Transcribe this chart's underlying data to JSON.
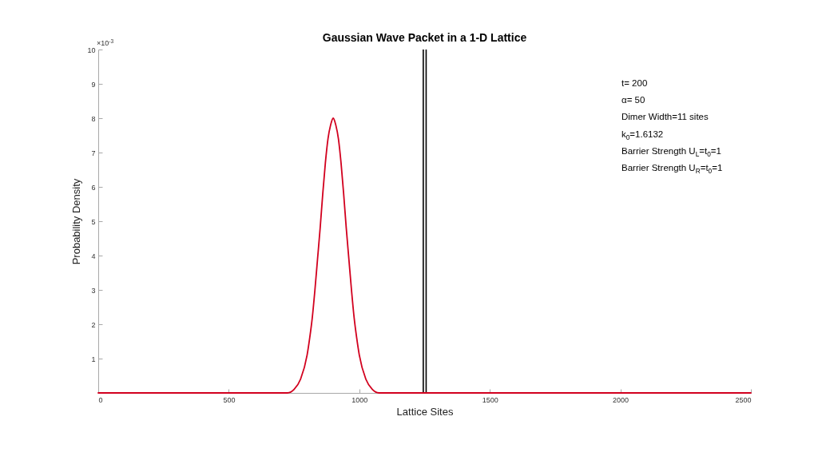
{
  "chart_data": {
    "type": "line",
    "title": "Gaussian Wave Packet in a 1-D Lattice",
    "xlabel": "Lattice Sites",
    "ylabel": "Probability Density",
    "annotations": [
      "×10$^{-3}$",
      "t= 200",
      "α= 50",
      "Dimer Width=11 sites",
      "k$_{0}$=1.6132",
      "Barrier Strength U$_{L}$=t$_{0}$=1",
      "Barrier Strength U$_{R}$=t$_{0}$=1"
    ],
    "x": [
      0,
      500,
      700,
      725,
      750,
      775,
      800,
      810,
      820,
      830,
      840,
      850,
      860,
      870,
      880,
      890,
      900,
      910,
      920,
      930,
      940,
      950,
      960,
      970,
      980,
      990,
      1000,
      1025,
      1050,
      1075,
      1100,
      1300,
      2500
    ],
    "series": [
      {
        "color": "#d2001e",
        "values": [
          0,
          0,
          0,
          0,
          0.1,
          0.4,
          1.1,
          1.6,
          2.2,
          3.0,
          3.9,
          4.8,
          5.8,
          6.7,
          7.4,
          7.8,
          8.0,
          7.8,
          7.4,
          6.7,
          5.8,
          4.8,
          3.9,
          3.0,
          2.2,
          1.6,
          1.1,
          0.4,
          0.1,
          0,
          0,
          0,
          0
        ]
      }
    ],
    "xlim": [
      0,
      2500
    ],
    "xticks": [
      0,
      500,
      1000,
      1500,
      2000,
      2500
    ],
    "ylim": [
      0,
      10
    ],
    "yticks": [
      1,
      2,
      3,
      4,
      5,
      6,
      7,
      8,
      9,
      10
    ],
    "ref_lines": [
      {
        "axis": "x",
        "value": 1245,
        "color": "#000000"
      },
      {
        "axis": "x",
        "value": 1256,
        "color": "#000000"
      }
    ]
  }
}
